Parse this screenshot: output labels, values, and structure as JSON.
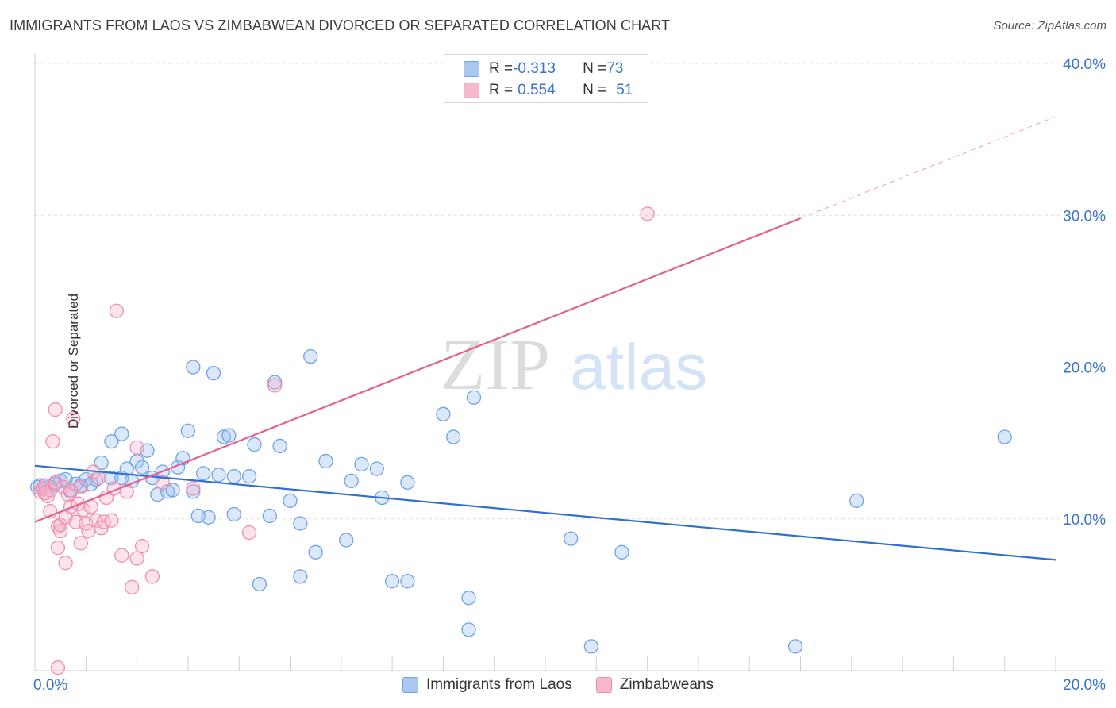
{
  "header": {
    "title": "IMMIGRANTS FROM LAOS VS ZIMBABWEAN DIVORCED OR SEPARATED CORRELATION CHART",
    "source": "Source: ZipAtlas.com"
  },
  "watermark": {
    "zip": "ZIP",
    "atlas": "atlas"
  },
  "stats": [
    {
      "r_label": "R = ",
      "r_value": "-0.313",
      "n_label": "N = ",
      "n_value": "73",
      "color": "#a8c8f0"
    },
    {
      "r_label": "R = ",
      "r_value": "0.554",
      "n_label": "N = ",
      "n_value": "51",
      "color": "#f5b8cc"
    }
  ],
  "chart_data": {
    "type": "scatter",
    "ylabel": "Divorced or Separated",
    "xlim": [
      0,
      20
    ],
    "ylim": [
      0,
      40
    ],
    "x_ticks": [
      {
        "value": 0,
        "label": "0.0%"
      },
      {
        "value": 20,
        "label": "20.0%"
      }
    ],
    "y_ticks": [
      {
        "value": 10,
        "label": "10.0%"
      },
      {
        "value": 20,
        "label": "20.0%"
      },
      {
        "value": 30,
        "label": "30.0%"
      },
      {
        "value": 40,
        "label": "40.0%"
      }
    ],
    "grid": true,
    "legend_position": "bottom",
    "series": [
      {
        "name": "Immigrants from Laos",
        "color": "#6fa3e4",
        "fill": "rgba(150,190,240,0.35)",
        "line_color": "#2f6fcf",
        "trend": {
          "x": [
            0,
            20
          ],
          "y": [
            13.5,
            7.3
          ]
        },
        "points": [
          [
            0.1,
            12.2
          ],
          [
            0.2,
            12.2
          ],
          [
            0.3,
            12.1
          ],
          [
            0.4,
            12.3
          ],
          [
            0.5,
            12.5
          ],
          [
            0.6,
            12.6
          ],
          [
            0.7,
            11.8
          ],
          [
            0.8,
            12.3
          ],
          [
            0.9,
            12.2
          ],
          [
            1.0,
            12.6
          ],
          [
            1.1,
            12.3
          ],
          [
            1.2,
            12.6
          ],
          [
            1.3,
            13.7
          ],
          [
            1.5,
            12.7
          ],
          [
            1.5,
            15.1
          ],
          [
            1.7,
            12.7
          ],
          [
            1.7,
            15.6
          ],
          [
            1.8,
            13.3
          ],
          [
            1.9,
            12.5
          ],
          [
            2.0,
            13.8
          ],
          [
            2.1,
            13.4
          ],
          [
            2.2,
            14.5
          ],
          [
            2.3,
            12.7
          ],
          [
            2.4,
            11.6
          ],
          [
            2.5,
            13.1
          ],
          [
            2.6,
            11.8
          ],
          [
            2.7,
            11.9
          ],
          [
            2.8,
            13.4
          ],
          [
            2.9,
            14.0
          ],
          [
            3.0,
            15.8
          ],
          [
            3.1,
            11.8
          ],
          [
            3.1,
            20.0
          ],
          [
            3.2,
            10.2
          ],
          [
            3.3,
            13.0
          ],
          [
            3.4,
            10.1
          ],
          [
            3.5,
            19.6
          ],
          [
            3.6,
            12.9
          ],
          [
            3.7,
            15.4
          ],
          [
            3.8,
            15.5
          ],
          [
            3.9,
            10.3
          ],
          [
            3.9,
            12.8
          ],
          [
            4.2,
            12.8
          ],
          [
            4.3,
            14.9
          ],
          [
            4.4,
            5.7
          ],
          [
            4.6,
            10.2
          ],
          [
            4.7,
            19.0
          ],
          [
            4.8,
            14.8
          ],
          [
            5.0,
            11.2
          ],
          [
            5.2,
            9.7
          ],
          [
            5.2,
            6.2
          ],
          [
            5.4,
            20.7
          ],
          [
            5.5,
            7.8
          ],
          [
            5.7,
            13.8
          ],
          [
            6.1,
            8.6
          ],
          [
            6.2,
            12.5
          ],
          [
            6.4,
            13.6
          ],
          [
            6.7,
            13.3
          ],
          [
            6.8,
            11.4
          ],
          [
            7.0,
            5.9
          ],
          [
            7.3,
            12.4
          ],
          [
            7.3,
            5.9
          ],
          [
            8.0,
            16.9
          ],
          [
            8.2,
            15.4
          ],
          [
            8.5,
            2.7
          ],
          [
            8.5,
            4.8
          ],
          [
            8.6,
            18.0
          ],
          [
            10.5,
            8.7
          ],
          [
            10.9,
            1.6
          ],
          [
            11.5,
            7.8
          ],
          [
            14.9,
            1.6
          ],
          [
            16.1,
            11.2
          ],
          [
            19.0,
            15.4
          ],
          [
            0.05,
            12.1
          ]
        ]
      },
      {
        "name": "Zimbabweans",
        "color": "#ee8fb0",
        "fill": "rgba(245,175,200,0.35)",
        "line_color": "#e0628f",
        "trend": {
          "x": [
            0,
            15
          ],
          "y": [
            9.8,
            29.8
          ]
        },
        "trend_ext": {
          "x": [
            15,
            20
          ],
          "y": [
            29.8,
            36.5
          ]
        },
        "points": [
          [
            0.1,
            11.8
          ],
          [
            0.15,
            12.0
          ],
          [
            0.2,
            12.2
          ],
          [
            0.25,
            11.5
          ],
          [
            0.3,
            11.9
          ],
          [
            0.3,
            10.5
          ],
          [
            0.35,
            15.1
          ],
          [
            0.4,
            17.2
          ],
          [
            0.4,
            12.4
          ],
          [
            0.45,
            9.5
          ],
          [
            0.45,
            8.1
          ],
          [
            0.5,
            9.2
          ],
          [
            0.5,
            9.6
          ],
          [
            0.55,
            12.1
          ],
          [
            0.6,
            10.1
          ],
          [
            0.6,
            7.1
          ],
          [
            0.65,
            11.6
          ],
          [
            0.7,
            10.8
          ],
          [
            0.75,
            16.6
          ],
          [
            0.8,
            9.8
          ],
          [
            0.85,
            11.0
          ],
          [
            0.9,
            12.1
          ],
          [
            0.9,
            8.4
          ],
          [
            0.95,
            10.6
          ],
          [
            1.0,
            9.7
          ],
          [
            1.05,
            9.2
          ],
          [
            1.1,
            10.8
          ],
          [
            1.15,
            13.1
          ],
          [
            1.2,
            9.9
          ],
          [
            1.25,
            12.7
          ],
          [
            1.3,
            9.4
          ],
          [
            1.35,
            9.8
          ],
          [
            1.4,
            11.4
          ],
          [
            1.5,
            9.9
          ],
          [
            1.55,
            12.0
          ],
          [
            1.6,
            23.7
          ],
          [
            1.7,
            7.6
          ],
          [
            1.8,
            11.8
          ],
          [
            1.9,
            5.5
          ],
          [
            2.0,
            14.7
          ],
          [
            2.0,
            7.4
          ],
          [
            2.1,
            8.2
          ],
          [
            2.3,
            6.2
          ],
          [
            2.5,
            12.4
          ],
          [
            3.1,
            12.0
          ],
          [
            4.2,
            9.1
          ],
          [
            4.7,
            18.8
          ],
          [
            12.0,
            30.1
          ],
          [
            0.45,
            0.2
          ],
          [
            0.7,
            11.9
          ],
          [
            0.2,
            11.7
          ]
        ]
      }
    ]
  }
}
